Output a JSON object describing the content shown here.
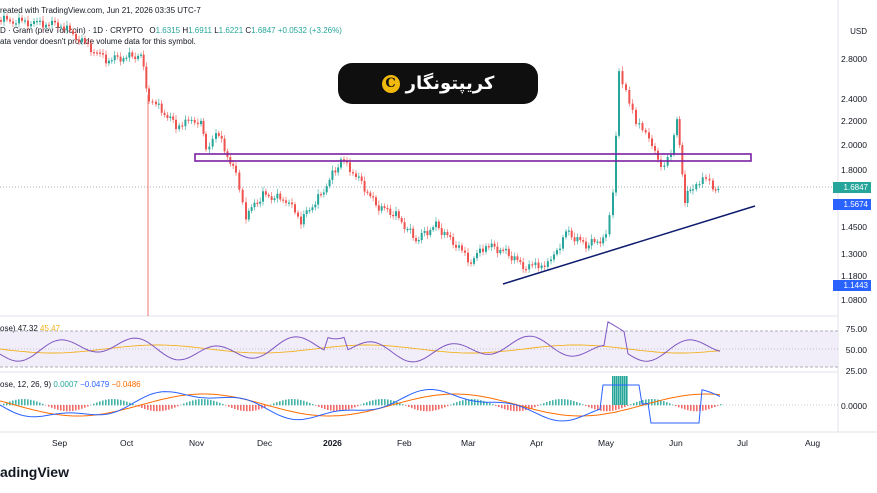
{
  "header": {
    "created_line": "reated with TradingView.com, Jun 21, 2026 03:35 UTC-7",
    "symbol_prefix": "D · Gram (prev Toncoin) · 1D · CRYPTO",
    "ohlc": {
      "o_label": "O",
      "o_value": "1.6315",
      "h_label": "H",
      "h_value": "1.6911",
      "l_label": "L",
      "l_value": "1.6221",
      "c_label": "C",
      "c_value": "1.6847",
      "change": "+0.0532 (+3.26%)"
    },
    "volume_note": "ata vendor doesn't provide volume data for this symbol."
  },
  "watermark": {
    "text": "کریپتونگار",
    "logo_glyph": "C"
  },
  "price_axis": {
    "currency": "USD",
    "ticks": [
      "2.8000",
      "2.4000",
      "2.2000",
      "2.0000",
      "1.8000",
      "1.4500",
      "1.3000",
      "1.1800",
      "1.0800"
    ],
    "tags": [
      {
        "value": "1.6847",
        "color": "#26a69a"
      },
      {
        "value": "1.5674",
        "color": "#2962ff"
      },
      {
        "value": "1.1443",
        "color": "#2962ff"
      }
    ]
  },
  "rsi": {
    "label": "ose) 47.32",
    "ma_value": "45.47",
    "ticks": [
      "75.00",
      "50.00",
      "25.00"
    ]
  },
  "macd": {
    "label": "ose, 12, 26, 9)",
    "values": [
      "0.0007",
      "−0.0479",
      "−0.0486"
    ],
    "ticks": [
      "0.0000"
    ]
  },
  "time_axis": {
    "months": [
      "Sep",
      "Oct",
      "Nov",
      "Dec",
      "2026",
      "Feb",
      "Mar",
      "Apr",
      "May",
      "Jun",
      "Jul",
      "Aug"
    ]
  },
  "footer": {
    "brand": "adingView"
  },
  "colors": {
    "up": "#26a69a",
    "down": "#ef5350",
    "rsi": "#7e57c2",
    "rsi_ma": "#f2b01e",
    "macd": "#2962ff",
    "signal": "#ff6d00",
    "zone": "#7b1fa2",
    "trend": "#0d1b6e"
  }
}
